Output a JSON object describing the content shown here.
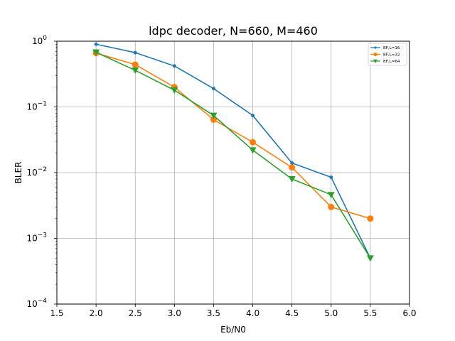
{
  "chart_data": {
    "type": "line",
    "title": "ldpc decoder, N=660, M=460",
    "xlabel": "Eb/N0",
    "ylabel": "BLER",
    "xlim": [
      1.5,
      6.0
    ],
    "ylim": [
      0.0001,
      1
    ],
    "yscale": "log",
    "grid": true,
    "legend_position": "top-right",
    "x_ticks": [
      "1.5",
      "2.0",
      "2.5",
      "3.0",
      "3.5",
      "4.0",
      "4.5",
      "5.0",
      "5.5",
      "6.0"
    ],
    "y_ticks": [
      {
        "value": 1,
        "base": "10",
        "exp": "0"
      },
      {
        "value": 0.1,
        "base": "10",
        "exp": "−1"
      },
      {
        "value": 0.01,
        "base": "10",
        "exp": "−2"
      },
      {
        "value": 0.001,
        "base": "10",
        "exp": "−3"
      },
      {
        "value": 0.0001,
        "base": "10",
        "exp": "−4"
      }
    ],
    "series": [
      {
        "name": "BF,L=16",
        "color": "#1f77b4",
        "marker": "dot",
        "x": [
          2.0,
          2.5,
          3.0,
          3.5,
          4.0,
          4.5,
          5.0,
          5.5
        ],
        "y": [
          0.9,
          0.67,
          0.42,
          0.19,
          0.074,
          0.014,
          0.0085,
          0.0005
        ]
      },
      {
        "name": "BF,L=32",
        "color": "#ff7f0e",
        "marker": "circle",
        "x": [
          2.0,
          2.5,
          3.0,
          3.5,
          4.0,
          4.5,
          5.0,
          5.5
        ],
        "y": [
          0.66,
          0.44,
          0.2,
          0.064,
          0.029,
          0.012,
          0.003,
          0.002
        ]
      },
      {
        "name": "BF,L=64",
        "color": "#2ca02c",
        "marker": "triangle-down",
        "x": [
          2.0,
          2.5,
          3.0,
          3.5,
          4.0,
          4.5,
          5.0,
          5.5
        ],
        "y": [
          0.68,
          0.36,
          0.18,
          0.074,
          0.022,
          0.008,
          0.0046,
          0.0005
        ]
      }
    ]
  }
}
